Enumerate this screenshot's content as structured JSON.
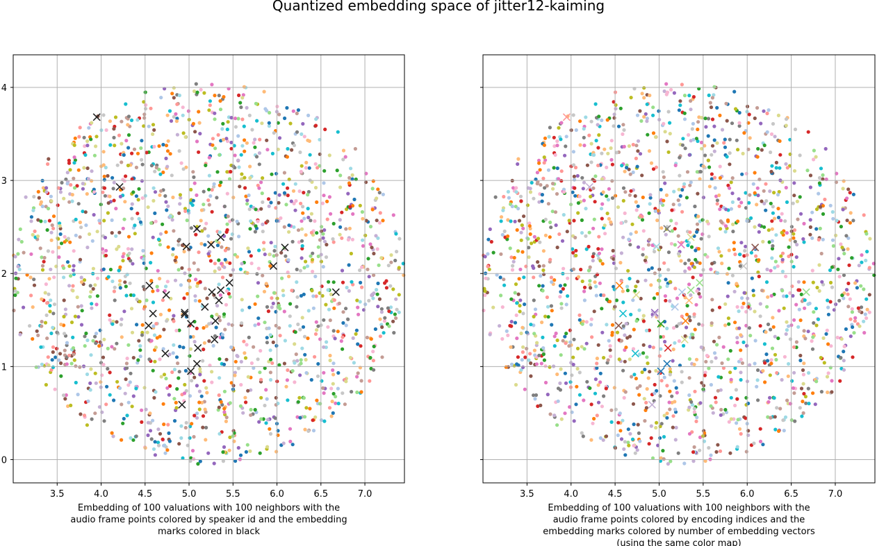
{
  "chart_data": [
    {
      "type": "scatter",
      "title": "Quantized embedding space of jitter12-kaiming",
      "xlabel": "Embedding of 100 valuations with 100 neighbors with the audio frame points colored by speaker id and the embedding marks colored in black",
      "xlabel_lines": [
        "Embedding of 100 valuations with 100 neighbors with the",
        "audio frame points colored by speaker id and the embedding",
        "marks colored in black"
      ],
      "ylabel": "",
      "xlim": [
        3.0,
        7.45
      ],
      "ylim": [
        -0.25,
        4.35
      ],
      "xticks": [
        3.5,
        4.0,
        4.5,
        5.0,
        5.5,
        6.0,
        6.5,
        7.0
      ],
      "xtick_labels": [
        "3.5",
        "4.0",
        "4.5",
        "5.0",
        "5.5",
        "6.0",
        "6.5",
        "7.0"
      ],
      "yticks": [
        0,
        1,
        2,
        3,
        4
      ],
      "ytick_labels": [
        "0",
        "1",
        "2",
        "3",
        "4"
      ],
      "grid": true,
      "point_colormap": "tab20",
      "embedding_marks_color": "#222222",
      "embedding_marks": [
        {
          "x": 3.95,
          "y": 3.68
        },
        {
          "x": 4.21,
          "y": 2.93
        },
        {
          "x": 5.09,
          "y": 2.48
        },
        {
          "x": 5.36,
          "y": 2.39
        },
        {
          "x": 5.25,
          "y": 2.31
        },
        {
          "x": 4.97,
          "y": 2.29
        },
        {
          "x": 6.09,
          "y": 2.28
        },
        {
          "x": 5.96,
          "y": 2.08
        },
        {
          "x": 5.46,
          "y": 1.9
        },
        {
          "x": 4.55,
          "y": 1.87
        },
        {
          "x": 5.36,
          "y": 1.82
        },
        {
          "x": 6.67,
          "y": 1.8
        },
        {
          "x": 5.26,
          "y": 1.8
        },
        {
          "x": 4.74,
          "y": 1.77
        },
        {
          "x": 5.34,
          "y": 1.71
        },
        {
          "x": 5.18,
          "y": 1.64
        },
        {
          "x": 4.95,
          "y": 1.58
        },
        {
          "x": 4.59,
          "y": 1.57
        },
        {
          "x": 4.95,
          "y": 1.56
        },
        {
          "x": 5.3,
          "y": 1.49
        },
        {
          "x": 5.02,
          "y": 1.46
        },
        {
          "x": 4.54,
          "y": 1.44
        },
        {
          "x": 5.29,
          "y": 1.29
        },
        {
          "x": 5.1,
          "y": 1.2
        },
        {
          "x": 4.73,
          "y": 1.14
        },
        {
          "x": 5.09,
          "y": 1.03
        },
        {
          "x": 5.02,
          "y": 0.95
        },
        {
          "x": 4.92,
          "y": 0.59
        }
      ],
      "n_points": 1800,
      "points_seed": 7
    },
    {
      "type": "scatter",
      "title": "",
      "xlabel": "Embedding of 100 valuations with 100 neighbors with the audio frame points colored by encoding indices and the embedding marks colored by number of embedding vectors (using the same color map)",
      "xlabel_lines": [
        "Embedding of 100 valuations with 100 neighbors with the",
        "audio frame points colored by encoding indices and the",
        "embedding marks colored by number of embedding vectors",
        "(using the same color map)"
      ],
      "ylabel": "",
      "xlim": [
        3.0,
        7.45
      ],
      "ylim": [
        -0.25,
        4.35
      ],
      "xticks": [
        3.5,
        4.0,
        4.5,
        5.0,
        5.5,
        6.0,
        6.5,
        7.0
      ],
      "xtick_labels": [
        "3.5",
        "4.0",
        "4.5",
        "5.0",
        "5.5",
        "6.0",
        "6.5",
        "7.0"
      ],
      "yticks": [
        0,
        1,
        2,
        3,
        4
      ],
      "ytick_labels": [
        "",
        "",
        "",
        "",
        ""
      ],
      "grid": true,
      "point_colormap": "tab20",
      "embedding_marks": [
        {
          "x": 3.95,
          "y": 3.68,
          "color": "#ff9896"
        },
        {
          "x": 4.21,
          "y": 2.93,
          "color": "#c5b0d5"
        },
        {
          "x": 5.09,
          "y": 2.48,
          "color": "#7f7f7f"
        },
        {
          "x": 5.36,
          "y": 2.39,
          "color": "#dbdb8d"
        },
        {
          "x": 5.25,
          "y": 2.31,
          "color": "#e377c2"
        },
        {
          "x": 4.97,
          "y": 2.29,
          "color": "#9edae5"
        },
        {
          "x": 6.09,
          "y": 2.28,
          "color": "#8c564b"
        },
        {
          "x": 5.96,
          "y": 2.08,
          "color": "#c7c7c7"
        },
        {
          "x": 5.46,
          "y": 1.9,
          "color": "#98df8a"
        },
        {
          "x": 4.55,
          "y": 1.87,
          "color": "#ff7f0e"
        },
        {
          "x": 5.36,
          "y": 1.82,
          "color": "#98df8a"
        },
        {
          "x": 6.67,
          "y": 1.8,
          "color": "#98df8a"
        },
        {
          "x": 5.26,
          "y": 1.8,
          "color": "#aec7e8"
        },
        {
          "x": 4.74,
          "y": 1.77,
          "color": "#dbdb8d"
        },
        {
          "x": 5.34,
          "y": 1.71,
          "color": "#ffbb78"
        },
        {
          "x": 5.18,
          "y": 1.64,
          "color": "#aec7e8"
        },
        {
          "x": 4.95,
          "y": 1.58,
          "color": "#9467bd"
        },
        {
          "x": 4.59,
          "y": 1.57,
          "color": "#17becf"
        },
        {
          "x": 4.95,
          "y": 1.56,
          "color": "#c5b0d5"
        },
        {
          "x": 5.3,
          "y": 1.49,
          "color": "#ff7f0e"
        },
        {
          "x": 5.02,
          "y": 1.46,
          "color": "#2ca02c"
        },
        {
          "x": 4.54,
          "y": 1.44,
          "color": "#8c564b"
        },
        {
          "x": 5.29,
          "y": 1.29,
          "color": "#dbdb8d"
        },
        {
          "x": 5.1,
          "y": 1.2,
          "color": "#d62728"
        },
        {
          "x": 4.73,
          "y": 1.14,
          "color": "#17becf"
        },
        {
          "x": 5.09,
          "y": 1.03,
          "color": "#1f77b4"
        },
        {
          "x": 5.02,
          "y": 0.95,
          "color": "#1f77b4"
        },
        {
          "x": 4.92,
          "y": 0.59,
          "color": "#c5b0d5"
        }
      ],
      "n_points": 1800,
      "points_seed": 7
    }
  ],
  "palette_tab20": [
    "#1f77b4",
    "#aec7e8",
    "#ff7f0e",
    "#ffbb78",
    "#2ca02c",
    "#98df8a",
    "#d62728",
    "#ff9896",
    "#9467bd",
    "#c5b0d5",
    "#8c564b",
    "#c49c94",
    "#e377c2",
    "#f7b6d2",
    "#7f7f7f",
    "#c7c7c7",
    "#bcbd22",
    "#dbdb8d",
    "#17becf",
    "#9edae5"
  ]
}
